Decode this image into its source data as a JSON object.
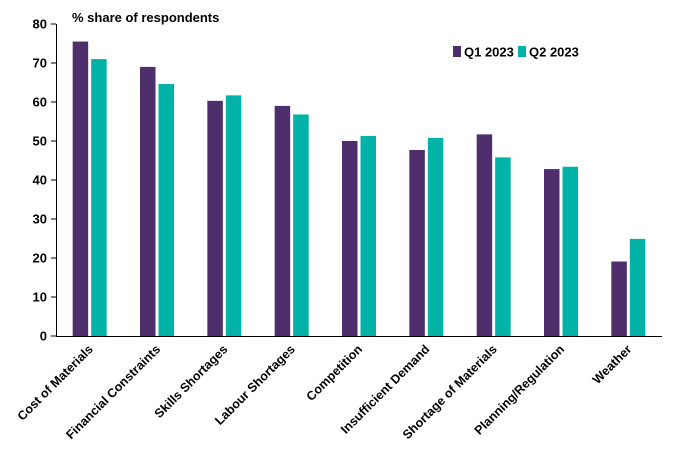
{
  "chart_data": {
    "type": "bar",
    "ylabel": "% share of respondents",
    "categories": [
      "Cost of Materials",
      "Financial Constraints",
      "Skills Shortages",
      "Labour Shortages",
      "Competition",
      "Insufficient Demand",
      "Shortage of Materials",
      "Planning/Regulation",
      "Weather"
    ],
    "series": [
      {
        "name": "Q1 2023",
        "color": "#4e2f6c",
        "values": [
          75.5,
          69,
          60.3,
          59,
          50,
          47.7,
          51.7,
          42.8,
          19.1
        ]
      },
      {
        "name": "Q2 2023",
        "color": "#00b3a6",
        "values": [
          71,
          64.6,
          61.7,
          56.8,
          51.3,
          50.8,
          45.8,
          43.4,
          24.9
        ]
      }
    ],
    "ylim": [
      0,
      80
    ],
    "yticks": [
      "0",
      "10",
      "20",
      "30",
      "40",
      "50",
      "60",
      "70",
      "80"
    ],
    "grid": false,
    "legend_position": "top-right"
  }
}
